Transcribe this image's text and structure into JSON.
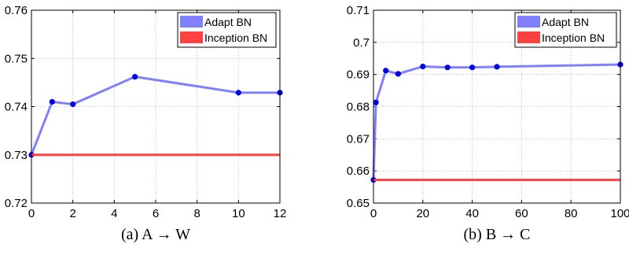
{
  "chart_data": [
    {
      "type": "line",
      "caption": "(a)  A → W",
      "xlim": [
        0,
        12
      ],
      "ylim": [
        0.72,
        0.76
      ],
      "xticks": [
        0,
        2,
        4,
        6,
        8,
        10,
        12
      ],
      "yticks": [
        0.72,
        0.73,
        0.74,
        0.75,
        0.76
      ],
      "grid": true,
      "legend_position": "top-right",
      "series": [
        {
          "name": "Adapt BN",
          "color": "#8080ff",
          "markers": true,
          "points": [
            {
              "x": 0,
              "y": 0.73
            },
            {
              "x": 1,
              "y": 0.741
            },
            {
              "x": 2,
              "y": 0.7405
            },
            {
              "x": 5,
              "y": 0.7462
            },
            {
              "x": 10,
              "y": 0.7429
            },
            {
              "x": 12,
              "y": 0.7429
            }
          ]
        },
        {
          "name": "Inception BN",
          "color": "#ff4040",
          "markers": false,
          "points": [
            {
              "x": 0,
              "y": 0.73
            },
            {
              "x": 12,
              "y": 0.73
            }
          ]
        }
      ]
    },
    {
      "type": "line",
      "caption": "(b)  B → C",
      "xlim": [
        0,
        100
      ],
      "ylim": [
        0.65,
        0.71
      ],
      "xticks": [
        0,
        20,
        40,
        60,
        80,
        100
      ],
      "yticks": [
        0.65,
        0.66,
        0.67,
        0.68,
        0.69,
        0.7,
        0.71
      ],
      "ytick_labels": [
        "0.65",
        "0.66",
        "0.67",
        "0.68",
        "0.69",
        "0.7",
        "0.71"
      ],
      "grid": true,
      "legend_position": "top-right",
      "series": [
        {
          "name": "Adapt BN",
          "color": "#8080ff",
          "markers": true,
          "points": [
            {
              "x": 0,
              "y": 0.6572
            },
            {
              "x": 1,
              "y": 0.6813
            },
            {
              "x": 5,
              "y": 0.6912
            },
            {
              "x": 10,
              "y": 0.6902
            },
            {
              "x": 20,
              "y": 0.6925
            },
            {
              "x": 30,
              "y": 0.6922
            },
            {
              "x": 40,
              "y": 0.6922
            },
            {
              "x": 50,
              "y": 0.6924
            },
            {
              "x": 100,
              "y": 0.6931
            }
          ]
        },
        {
          "name": "Inception BN",
          "color": "#ff4040",
          "markers": false,
          "points": [
            {
              "x": 0,
              "y": 0.6572
            },
            {
              "x": 100,
              "y": 0.6572
            }
          ]
        }
      ]
    }
  ]
}
